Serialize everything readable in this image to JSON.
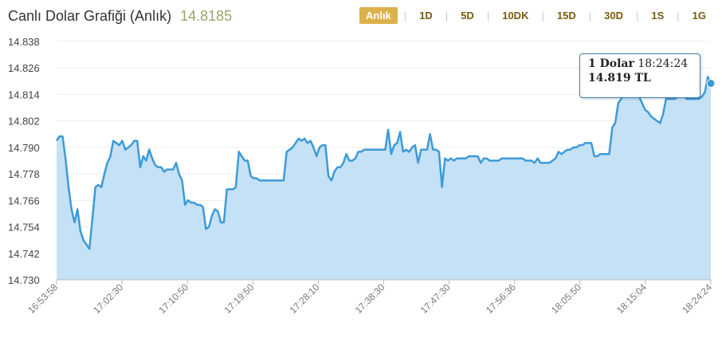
{
  "header": {
    "title": "Canlı Dolar Grafiği (Anlık)",
    "price": "14.8185",
    "ranges": [
      {
        "label": "Anlık",
        "active": true
      },
      {
        "label": "1D",
        "active": false
      },
      {
        "label": "5D",
        "active": false
      },
      {
        "label": "10DK",
        "active": false
      },
      {
        "label": "15D",
        "active": false
      },
      {
        "label": "30D",
        "active": false
      },
      {
        "label": "1S",
        "active": false
      },
      {
        "label": "1G",
        "active": false
      }
    ]
  },
  "tooltip": {
    "label": "1 Dolar",
    "time": "18:24:24",
    "value": "14.819 TL"
  },
  "colors": {
    "line": "#3d9ad8",
    "fill": "#c5e1f5",
    "grid": "#ececec",
    "accent": "#dbb24a"
  },
  "chart_data": {
    "type": "area",
    "title": "",
    "xlabel": "",
    "ylabel": "",
    "ylim": [
      14.73,
      14.838
    ],
    "yticks": [
      "14.838",
      "14.826",
      "14.814",
      "14.802",
      "14.790",
      "14.778",
      "14.766",
      "14.754",
      "14.742",
      "14.730"
    ],
    "xticks": [
      "16:53:58",
      "17:02:30",
      "17:10:50",
      "17:19:50",
      "17:28:10",
      "17:38:30",
      "17:47:30",
      "17:56:36",
      "18:05:50",
      "18:15:04",
      "18:24:24"
    ],
    "series": [
      {
        "values": [
          14.793,
          14.795,
          14.795,
          14.785,
          14.772,
          14.762,
          14.756,
          14.762,
          14.752,
          14.748,
          14.746,
          14.744,
          14.758,
          14.772,
          14.773,
          14.772,
          14.778,
          14.783,
          14.786,
          14.793,
          14.792,
          14.791,
          14.793,
          14.789,
          14.79,
          14.791,
          14.793,
          14.793,
          14.781,
          14.786,
          14.784,
          14.789,
          14.785,
          14.782,
          14.781,
          14.781,
          14.779,
          14.78,
          14.78,
          14.78,
          14.783,
          14.778,
          14.775,
          14.764,
          14.766,
          14.765,
          14.765,
          14.764,
          14.764,
          14.763,
          14.753,
          14.754,
          14.759,
          14.762,
          14.761,
          14.756,
          14.756,
          14.771,
          14.771,
          14.771,
          14.772,
          14.788,
          14.786,
          14.784,
          14.784,
          14.777,
          14.776,
          14.776,
          14.775,
          14.775,
          14.775,
          14.775,
          14.775,
          14.775,
          14.775,
          14.775,
          14.775,
          14.788,
          14.789,
          14.79,
          14.792,
          14.794,
          14.793,
          14.794,
          14.792,
          14.793,
          14.79,
          14.786,
          14.79,
          14.791,
          14.791,
          14.777,
          14.775,
          14.779,
          14.781,
          14.781,
          14.783,
          14.787,
          14.784,
          14.784,
          14.785,
          14.788,
          14.788,
          14.789,
          14.789,
          14.789,
          14.789,
          14.789,
          14.789,
          14.789,
          14.789,
          14.798,
          14.787,
          14.791,
          14.792,
          14.797,
          14.788,
          14.789,
          14.788,
          14.79,
          14.791,
          14.783,
          14.789,
          14.789,
          14.789,
          14.796,
          14.789,
          14.789,
          14.788,
          14.772,
          14.785,
          14.784,
          14.785,
          14.784,
          14.785,
          14.785,
          14.785,
          14.785,
          14.786,
          14.786,
          14.786,
          14.786,
          14.783,
          14.785,
          14.785,
          14.784,
          14.784,
          14.784,
          14.784,
          14.785,
          14.785,
          14.785,
          14.785,
          14.785,
          14.785,
          14.785,
          14.785,
          14.784,
          14.784,
          14.784,
          14.783,
          14.785,
          14.783,
          14.783,
          14.783,
          14.783,
          14.784,
          14.785,
          14.788,
          14.787,
          14.788,
          14.789,
          14.789,
          14.79,
          14.79,
          14.791,
          14.791,
          14.792,
          14.792,
          14.792,
          14.786,
          14.786,
          14.787,
          14.787,
          14.787,
          14.787,
          14.799,
          14.801,
          14.81,
          14.812,
          14.815,
          14.816,
          14.815,
          14.815,
          14.814,
          14.813,
          14.81,
          14.807,
          14.806,
          14.804,
          14.803,
          14.802,
          14.801,
          14.805,
          14.812,
          14.812,
          14.812,
          14.812,
          14.813,
          14.813,
          14.813,
          14.812,
          14.812,
          14.812,
          14.812,
          14.812,
          14.813,
          14.815,
          14.822,
          14.819
        ]
      }
    ]
  }
}
